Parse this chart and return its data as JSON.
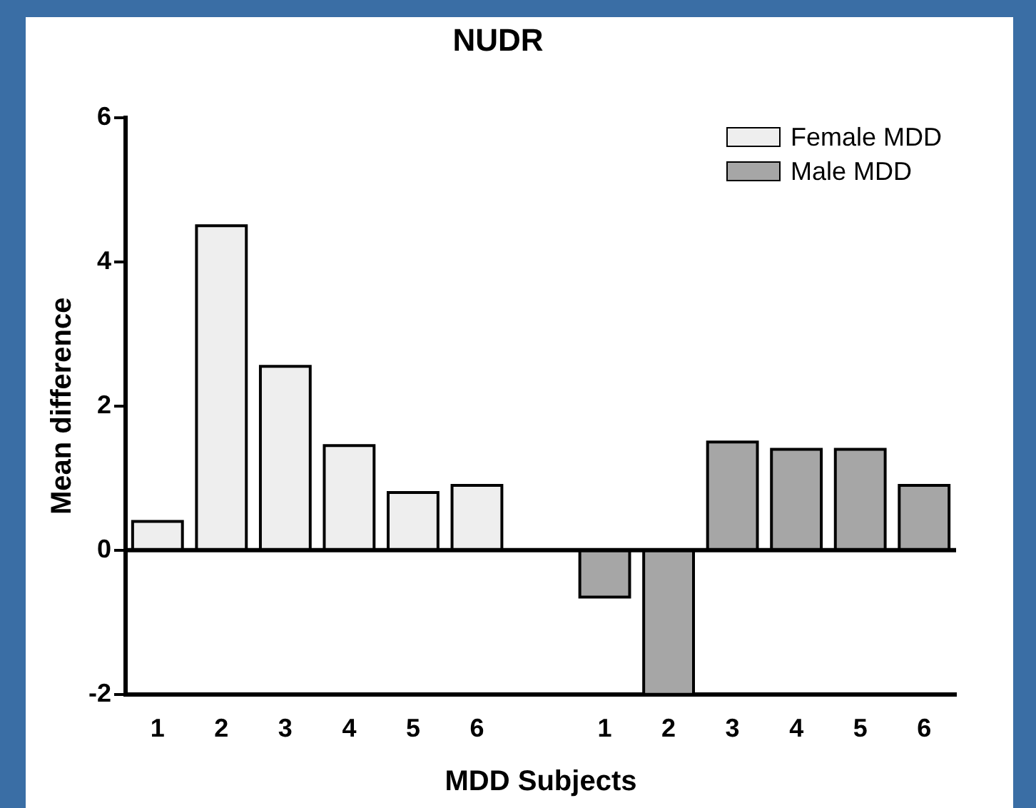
{
  "chart_data": {
    "type": "bar",
    "title": "NUDR",
    "xlabel": "MDD Subjects",
    "ylabel": "Mean difference",
    "categories": [
      "1",
      "2",
      "3",
      "4",
      "5",
      "6",
      null,
      "1",
      "2",
      "3",
      "4",
      "5",
      "6"
    ],
    "series": [
      {
        "name": "Female MDD",
        "color": "#eeeeee",
        "values": [
          0.4,
          4.5,
          2.55,
          1.45,
          0.8,
          0.9,
          null,
          null,
          null,
          null,
          null,
          null,
          null
        ]
      },
      {
        "name": "Male MDD",
        "color": "#a6a6a6",
        "values": [
          null,
          null,
          null,
          null,
          null,
          null,
          null,
          -0.65,
          -2,
          1.5,
          1.4,
          1.4,
          0.9
        ]
      }
    ],
    "ylim": [
      -2,
      6
    ],
    "yticks": [
      -2,
      0,
      2,
      4,
      6
    ],
    "ref_lines": [
      {
        "axis": "y",
        "value": 0,
        "color": "#000000"
      }
    ],
    "grid": false,
    "legend": "top right"
  }
}
